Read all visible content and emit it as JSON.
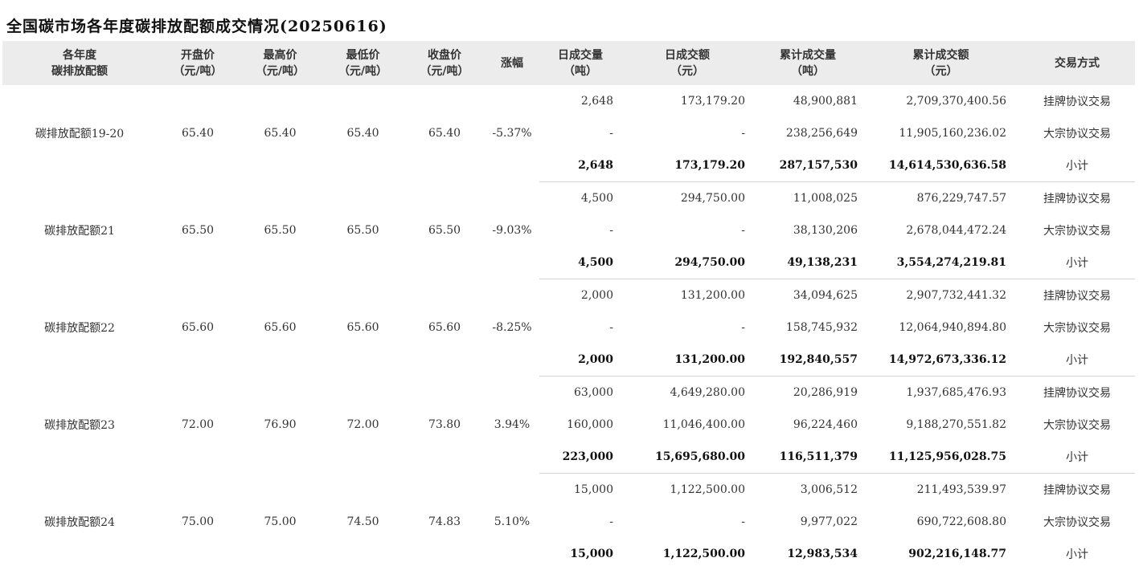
{
  "title": "全国碳市场各年度碳排放配额成交情况(20250616)",
  "headers": {
    "product_1": "各年度",
    "product_2": "碳排放配额",
    "open_1": "开盘价",
    "open_2": "（元/吨）",
    "high_1": "最高价",
    "high_2": "（元/吨）",
    "low_1": "最低价",
    "low_2": "（元/吨）",
    "close_1": "收盘价",
    "close_2": "（元/吨）",
    "change": "涨幅",
    "daily_vol_1": "日成交量",
    "daily_vol_2": "（吨）",
    "daily_amt_1": "日成交额",
    "daily_amt_2": "（元）",
    "cum_vol_1": "累计成交量",
    "cum_vol_2": "（吨）",
    "cum_amt_1": "累计成交额",
    "cum_amt_2": "（元）",
    "method": "交易方式"
  },
  "groups": [
    {
      "name": "碳排放配额19-20",
      "open": "65.40",
      "high": "65.40",
      "low": "65.40",
      "close": "65.40",
      "change": "-5.37%",
      "rows": [
        {
          "daily_vol": "2,648",
          "daily_amt": "173,179.20",
          "cum_vol": "48,900,881",
          "cum_amt": "2,709,370,400.56",
          "method": "挂牌协议交易"
        },
        {
          "daily_vol": "-",
          "daily_amt": "-",
          "cum_vol": "238,256,649",
          "cum_amt": "11,905,160,236.02",
          "method": "大宗协议交易"
        },
        {
          "daily_vol": "2,648",
          "daily_amt": "173,179.20",
          "cum_vol": "287,157,530",
          "cum_amt": "14,614,530,636.58",
          "method": "小计"
        }
      ]
    },
    {
      "name": "碳排放配额21",
      "open": "65.50",
      "high": "65.50",
      "low": "65.50",
      "close": "65.50",
      "change": "-9.03%",
      "rows": [
        {
          "daily_vol": "4,500",
          "daily_amt": "294,750.00",
          "cum_vol": "11,008,025",
          "cum_amt": "876,229,747.57",
          "method": "挂牌协议交易"
        },
        {
          "daily_vol": "-",
          "daily_amt": "-",
          "cum_vol": "38,130,206",
          "cum_amt": "2,678,044,472.24",
          "method": "大宗协议交易"
        },
        {
          "daily_vol": "4,500",
          "daily_amt": "294,750.00",
          "cum_vol": "49,138,231",
          "cum_amt": "3,554,274,219.81",
          "method": "小计"
        }
      ]
    },
    {
      "name": "碳排放配额22",
      "open": "65.60",
      "high": "65.60",
      "low": "65.60",
      "close": "65.60",
      "change": "-8.25%",
      "rows": [
        {
          "daily_vol": "2,000",
          "daily_amt": "131,200.00",
          "cum_vol": "34,094,625",
          "cum_amt": "2,907,732,441.32",
          "method": "挂牌协议交易"
        },
        {
          "daily_vol": "-",
          "daily_amt": "-",
          "cum_vol": "158,745,932",
          "cum_amt": "12,064,940,894.80",
          "method": "大宗协议交易"
        },
        {
          "daily_vol": "2,000",
          "daily_amt": "131,200.00",
          "cum_vol": "192,840,557",
          "cum_amt": "14,972,673,336.12",
          "method": "小计"
        }
      ]
    },
    {
      "name": "碳排放配额23",
      "open": "72.00",
      "high": "76.90",
      "low": "72.00",
      "close": "73.80",
      "change": "3.94%",
      "rows": [
        {
          "daily_vol": "63,000",
          "daily_amt": "4,649,280.00",
          "cum_vol": "20,286,919",
          "cum_amt": "1,937,685,476.93",
          "method": "挂牌协议交易"
        },
        {
          "daily_vol": "160,000",
          "daily_amt": "11,046,400.00",
          "cum_vol": "96,224,460",
          "cum_amt": "9,188,270,551.82",
          "method": "大宗协议交易"
        },
        {
          "daily_vol": "223,000",
          "daily_amt": "15,695,680.00",
          "cum_vol": "116,511,379",
          "cum_amt": "11,125,956,028.75",
          "method": "小计"
        }
      ]
    },
    {
      "name": "碳排放配额24",
      "open": "75.00",
      "high": "75.00",
      "low": "74.50",
      "close": "74.83",
      "change": "5.10%",
      "rows": [
        {
          "daily_vol": "15,000",
          "daily_amt": "1,122,500.00",
          "cum_vol": "3,006,512",
          "cum_amt": "211,493,539.97",
          "method": "挂牌协议交易"
        },
        {
          "daily_vol": "-",
          "daily_amt": "-",
          "cum_vol": "9,977,022",
          "cum_amt": "690,722,608.80",
          "method": "大宗协议交易"
        },
        {
          "daily_vol": "15,000",
          "daily_amt": "1,122,500.00",
          "cum_vol": "12,983,534",
          "cum_amt": "902,216,148.77",
          "method": "小计"
        }
      ]
    }
  ]
}
